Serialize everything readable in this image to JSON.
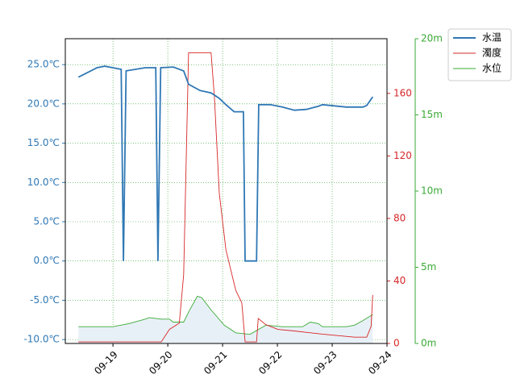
{
  "chart_data": {
    "type": "line",
    "xlim": [
      18.13,
      24.0
    ],
    "xticks": [
      {
        "value": 19,
        "label": "09-19"
      },
      {
        "value": 20,
        "label": "09-20"
      },
      {
        "value": 21,
        "label": "09-21"
      },
      {
        "value": 22,
        "label": "09-22"
      },
      {
        "value": 23,
        "label": "09-23"
      },
      {
        "value": 24,
        "label": "09-24"
      }
    ],
    "ylim": [
      -10.5,
      28.3
    ],
    "yticks": [
      {
        "value": -10,
        "label": "-10.0℃"
      },
      {
        "value": -5,
        "label": "-5.0℃"
      },
      {
        "value": 0,
        "label": "0.0℃"
      },
      {
        "value": 5,
        "label": "5.0℃"
      },
      {
        "value": 10,
        "label": "10.0℃"
      },
      {
        "value": 15,
        "label": "15.0℃"
      },
      {
        "value": 20,
        "label": "20.0℃"
      },
      {
        "value": 25,
        "label": "25.0℃"
      }
    ],
    "y2lim": [
      0,
      195
    ],
    "y2ticks": [
      0,
      40,
      80,
      120,
      160
    ],
    "y3lim": [
      0,
      20
    ],
    "y3ticks": [
      {
        "value": 0,
        "label": "0m"
      },
      {
        "value": 5,
        "label": "5m"
      },
      {
        "value": 10,
        "label": "10m"
      },
      {
        "value": 15,
        "label": "15m"
      },
      {
        "value": 20,
        "label": "20m"
      }
    ],
    "grid": true,
    "legend": "upper right outside",
    "series": [
      {
        "name": "水温",
        "color": "#2f78b5",
        "x": [
          18.37,
          18.71,
          18.85,
          19.15,
          19.19,
          19.24,
          19.59,
          19.78,
          19.82,
          19.87,
          20.1,
          20.29,
          20.38,
          20.59,
          20.79,
          20.94,
          21.06,
          21.21,
          21.38,
          21.41,
          21.62,
          21.66,
          21.87,
          22.09,
          22.31,
          22.53,
          22.75,
          22.82,
          23.26,
          23.56,
          23.63,
          23.74
        ],
        "values": [
          23.4,
          24.6,
          24.8,
          24.4,
          0,
          24.2,
          24.6,
          24.6,
          0,
          24.6,
          24.7,
          24.2,
          22.5,
          21.7,
          21.4,
          20.7,
          19.9,
          19.0,
          19.0,
          0,
          0,
          19.9,
          19.9,
          19.6,
          19.2,
          19.3,
          19.7,
          19.9,
          19.6,
          19.6,
          19.8,
          20.9
        ]
      },
      {
        "name": "濁度",
        "color": "#d62728",
        "axis": "y2",
        "x": [
          18.37,
          19.88,
          20.03,
          20.21,
          20.29,
          20.38,
          20.79,
          20.85,
          20.94,
          21.06,
          21.24,
          21.35,
          21.41,
          21.62,
          21.65,
          21.79,
          22.01,
          22.31,
          22.82,
          23.41,
          23.63,
          23.71,
          23.74
        ],
        "values": [
          1,
          1,
          9,
          13,
          44,
          186,
          186,
          158,
          96,
          60,
          34,
          26,
          1,
          1,
          16,
          12,
          9,
          8,
          6,
          4,
          4,
          11,
          31
        ]
      },
      {
        "name": "水位",
        "color": "#3aaa35",
        "axis": "y3",
        "fill": "#e8f0f7",
        "x": [
          18.37,
          19.0,
          19.29,
          19.59,
          19.66,
          19.88,
          20.03,
          20.1,
          20.29,
          20.4,
          20.54,
          20.62,
          20.79,
          21.03,
          21.24,
          21.5,
          21.79,
          22.09,
          22.46,
          22.6,
          22.75,
          22.82,
          23.26,
          23.41,
          23.56,
          23.74
        ],
        "values": [
          1.1,
          1.1,
          1.3,
          1.6,
          1.7,
          1.6,
          1.6,
          1.4,
          1.4,
          2.2,
          3.1,
          3.0,
          2.2,
          1.2,
          0.7,
          0.6,
          1.2,
          1.1,
          1.1,
          1.4,
          1.3,
          1.1,
          1.1,
          1.2,
          1.5,
          1.9
        ]
      }
    ]
  }
}
